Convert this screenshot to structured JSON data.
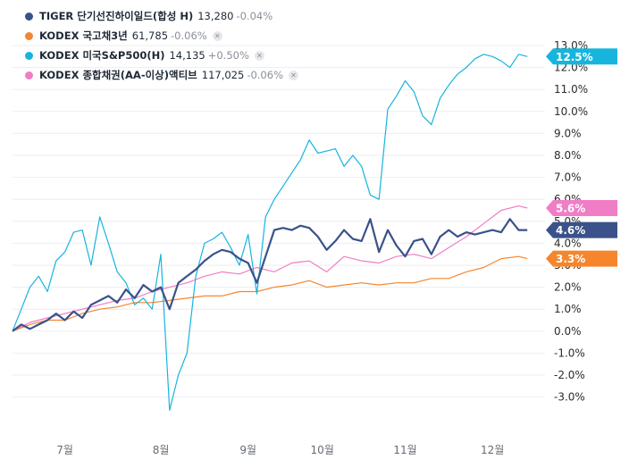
{
  "chart_data": {
    "type": "line",
    "ylim": [
      -3.5,
      13.3
    ],
    "xlim": [
      0,
      6.0
    ],
    "yticks": [
      13,
      12,
      11,
      10,
      9,
      8,
      7,
      6,
      5,
      4,
      3,
      2,
      1,
      0,
      -1,
      -2,
      -3
    ],
    "ytick_labels": [
      "13.0%",
      "12.0%",
      "11.0%",
      "10.0%",
      "9.0%",
      "8.0%",
      "7.0%",
      "6.0%",
      "5.0%",
      "4.0%",
      "3.0%",
      "2.0%",
      "1.0%",
      "0.0%",
      "-1.0%",
      "-2.0%",
      "-3.0%"
    ],
    "xticks": [
      0.6,
      1.7,
      2.7,
      3.55,
      4.5,
      5.5
    ],
    "xtick_labels": [
      "7월",
      "8월",
      "9월",
      "10월",
      "11월",
      "12월"
    ],
    "grid": true,
    "series": [
      {
        "name": "TIGER 단기선진하이일드(합성 H)",
        "value": "13,280",
        "change": "-0.04%",
        "color": "#3a5289",
        "badge": "4.6%",
        "removable": false,
        "x": [
          0,
          0.1,
          0.2,
          0.3,
          0.4,
          0.5,
          0.6,
          0.7,
          0.8,
          0.9,
          1.0,
          1.1,
          1.2,
          1.3,
          1.4,
          1.5,
          1.6,
          1.7,
          1.8,
          1.9,
          2.0,
          2.1,
          2.2,
          2.3,
          2.4,
          2.5,
          2.6,
          2.7,
          2.8,
          2.9,
          3.0,
          3.1,
          3.2,
          3.3,
          3.4,
          3.5,
          3.6,
          3.7,
          3.8,
          3.9,
          4.0,
          4.1,
          4.2,
          4.3,
          4.4,
          4.5,
          4.6,
          4.7,
          4.8,
          4.9,
          5.0,
          5.1,
          5.2,
          5.3,
          5.4,
          5.5,
          5.6,
          5.7,
          5.8,
          5.9
        ],
        "y": [
          0.0,
          0.3,
          0.1,
          0.3,
          0.5,
          0.8,
          0.5,
          0.9,
          0.6,
          1.2,
          1.4,
          1.6,
          1.3,
          1.9,
          1.5,
          2.1,
          1.8,
          2.0,
          1.0,
          2.2,
          2.5,
          2.8,
          3.2,
          3.5,
          3.7,
          3.6,
          3.3,
          3.1,
          2.2,
          3.4,
          4.6,
          4.7,
          4.6,
          4.8,
          4.7,
          4.3,
          3.7,
          4.1,
          4.6,
          4.2,
          4.1,
          5.1,
          3.6,
          4.6,
          3.9,
          3.4,
          4.1,
          4.2,
          3.5,
          4.3,
          4.6,
          4.3,
          4.5,
          4.4,
          4.5,
          4.6,
          4.5,
          5.1,
          4.6,
          4.6
        ]
      },
      {
        "name": "KODEX 국고채3년",
        "value": "61,785",
        "change": "-0.06%",
        "color": "#f5862e",
        "badge": "3.3%",
        "removable": true,
        "x": [
          0,
          0.2,
          0.4,
          0.6,
          0.8,
          1.0,
          1.2,
          1.4,
          1.6,
          1.8,
          2.0,
          2.2,
          2.4,
          2.6,
          2.8,
          3.0,
          3.2,
          3.4,
          3.6,
          3.8,
          4.0,
          4.2,
          4.4,
          4.6,
          4.8,
          5.0,
          5.2,
          5.4,
          5.6,
          5.8,
          5.9
        ],
        "y": [
          0.0,
          0.3,
          0.5,
          0.5,
          0.8,
          1.0,
          1.1,
          1.3,
          1.3,
          1.4,
          1.5,
          1.6,
          1.6,
          1.8,
          1.8,
          2.0,
          2.1,
          2.3,
          2.0,
          2.1,
          2.2,
          2.1,
          2.2,
          2.2,
          2.4,
          2.4,
          2.7,
          2.9,
          3.3,
          3.4,
          3.3
        ]
      },
      {
        "name": "KODEX 미국S&P500(H)",
        "value": "14,135",
        "change": "+0.50%",
        "color": "#16b5de",
        "badge": "12.5%",
        "removable": true,
        "x": [
          0,
          0.1,
          0.2,
          0.3,
          0.4,
          0.5,
          0.6,
          0.7,
          0.8,
          0.9,
          1.0,
          1.1,
          1.2,
          1.3,
          1.4,
          1.5,
          1.6,
          1.7,
          1.8,
          1.9,
          2.0,
          2.1,
          2.2,
          2.3,
          2.4,
          2.5,
          2.6,
          2.7,
          2.8,
          2.9,
          3.0,
          3.1,
          3.2,
          3.3,
          3.4,
          3.5,
          3.6,
          3.7,
          3.8,
          3.9,
          4.0,
          4.1,
          4.2,
          4.3,
          4.4,
          4.5,
          4.6,
          4.7,
          4.8,
          4.9,
          5.0,
          5.1,
          5.2,
          5.3,
          5.4,
          5.5,
          5.6,
          5.7,
          5.8,
          5.9
        ],
        "y": [
          0.0,
          1.0,
          2.0,
          2.5,
          1.8,
          3.2,
          3.6,
          4.5,
          4.6,
          3.0,
          5.2,
          4.0,
          2.7,
          2.2,
          1.2,
          1.5,
          1.0,
          3.5,
          -3.6,
          -2.0,
          -1.0,
          2.5,
          4.0,
          4.2,
          4.5,
          3.8,
          3.0,
          4.4,
          1.7,
          5.2,
          6.0,
          6.6,
          7.2,
          7.8,
          8.7,
          8.1,
          8.2,
          8.3,
          7.5,
          8.0,
          7.5,
          6.2,
          6.0,
          10.1,
          10.7,
          11.4,
          10.9,
          9.8,
          9.4,
          10.6,
          11.2,
          11.7,
          12.0,
          12.4,
          12.6,
          12.5,
          12.3,
          12.0,
          12.6,
          12.5
        ]
      },
      {
        "name": "KODEX 종합채권(AA-이상)액티브",
        "value": "117,025",
        "change": "-0.06%",
        "color": "#f07dc6",
        "badge": "5.6%",
        "removable": true,
        "x": [
          0,
          0.2,
          0.4,
          0.6,
          0.8,
          1.0,
          1.2,
          1.4,
          1.6,
          1.8,
          2.0,
          2.2,
          2.4,
          2.6,
          2.8,
          3.0,
          3.2,
          3.4,
          3.6,
          3.8,
          4.0,
          4.2,
          4.4,
          4.6,
          4.8,
          5.0,
          5.2,
          5.4,
          5.6,
          5.8,
          5.9
        ],
        "y": [
          0.0,
          0.4,
          0.6,
          0.8,
          1.0,
          1.2,
          1.4,
          1.5,
          1.8,
          2.0,
          2.2,
          2.5,
          2.7,
          2.6,
          2.9,
          2.7,
          3.1,
          3.2,
          2.7,
          3.4,
          3.2,
          3.1,
          3.4,
          3.5,
          3.3,
          3.8,
          4.3,
          4.9,
          5.5,
          5.7,
          5.6
        ]
      }
    ]
  }
}
